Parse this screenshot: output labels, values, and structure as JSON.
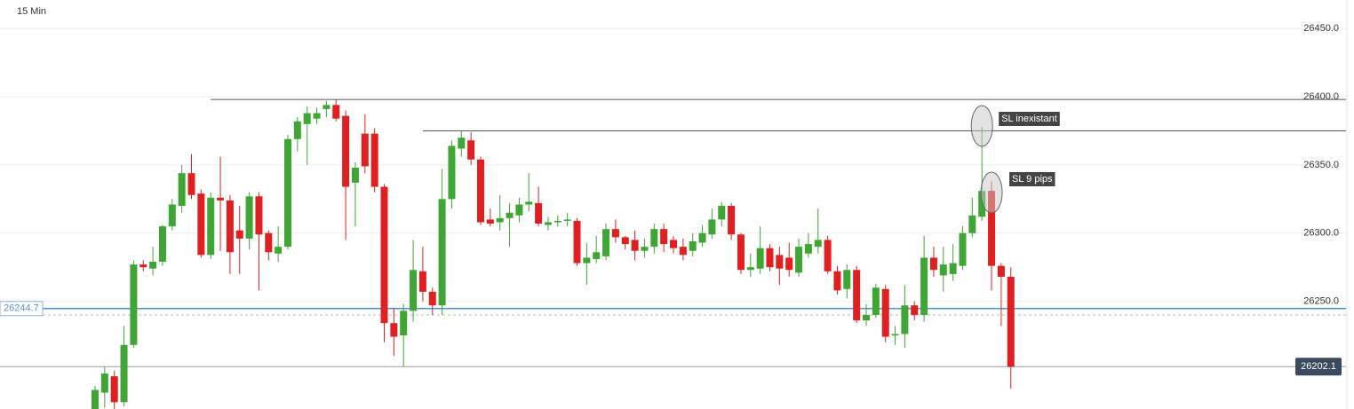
{
  "chart_data": {
    "type": "candlestick",
    "title": "15 Min",
    "open": [
      26171,
      26183,
      26195,
      26176,
      26218,
      26277,
      26274,
      26279,
      26305,
      26320,
      26344,
      26329,
      26284,
      26326,
      26324,
      26302,
      26296,
      26327,
      26300,
      26285,
      26290,
      26369,
      26380,
      26384,
      26391,
      26394,
      26386,
      26337,
      26373,
      26373,
      26334,
      26234,
      26225,
      26243,
      26272,
      26257,
      26247,
      26325,
      26362,
      26368,
      26354,
      26310,
      26308,
      26311,
      26313,
      26321,
      26322,
      26306,
      26308,
      26309,
      26309,
      26278,
      26281,
      26283,
      26303,
      26297,
      26295,
      26287,
      26290,
      26303,
      26295,
      26290,
      26287,
      26293,
      26299,
      26310,
      26320,
      26299,
      26273,
      26274,
      26289,
      26284,
      26282,
      26271,
      26285,
      26290,
      26295,
      26272,
      26259,
      26273,
      26236,
      26240,
      26259,
      26225,
      26226,
      26247,
      26240,
      26282,
      26269,
      26270,
      26276,
      26300,
      26312,
      26331,
      26276,
      26268
    ],
    "high": [
      26188,
      26202,
      26199,
      26232,
      26280,
      26280,
      26290,
      26306,
      26325,
      26350,
      26358,
      26332,
      26330,
      26356,
      26328,
      26320,
      26330,
      26330,
      26302,
      26305,
      26372,
      26385,
      26393,
      26392,
      26397,
      26398,
      26390,
      26352,
      26387,
      26377,
      26336,
      26245,
      26248,
      26295,
      26290,
      26260,
      26347,
      26368,
      26375,
      26374,
      26356,
      26318,
      26328,
      26322,
      26326,
      26344,
      26334,
      26312,
      26313,
      26315,
      26311,
      26293,
      26298,
      26307,
      26310,
      26298,
      26302,
      26296,
      26307,
      26307,
      26298,
      26296,
      26300,
      26306,
      26318,
      26323,
      26322,
      26300,
      26285,
      26305,
      26292,
      26290,
      26293,
      26296,
      26300,
      26318,
      26298,
      26276,
      26277,
      26276,
      26248,
      26263,
      26262,
      26232,
      26262,
      26250,
      26298,
      26290,
      26290,
      26292,
      26305,
      26326,
      26378,
      26338,
      26278,
      26275
    ],
    "low": [
      26171,
      26172,
      26171,
      26173,
      26216,
      26272,
      26269,
      26276,
      26302,
      26315,
      26325,
      26282,
      26281,
      26287,
      26270,
      26270,
      26288,
      26258,
      26280,
      26279,
      26288,
      26360,
      26350,
      26380,
      26385,
      26382,
      26295,
      26305,
      26344,
      26330,
      26220,
      26210,
      26202,
      26235,
      26250,
      26240,
      26240,
      26318,
      26356,
      26350,
      26306,
      26305,
      26302,
      26290,
      26308,
      26316,
      26305,
      26302,
      26305,
      26305,
      26276,
      26262,
      26278,
      26280,
      26293,
      26288,
      26280,
      26282,
      26285,
      26286,
      26285,
      26280,
      26283,
      26290,
      26296,
      26305,
      26295,
      26270,
      26268,
      26270,
      26272,
      26262,
      26268,
      26268,
      26282,
      26285,
      26270,
      26255,
      26252,
      26234,
      26232,
      26238,
      26220,
      26218,
      26216,
      26236,
      26235,
      26268,
      26257,
      26265,
      26273,
      26297,
      26309,
      26258,
      26232,
      26186
    ],
    "close": [
      26185,
      26197,
      26176,
      26218,
      26277,
      26275,
      26279,
      26305,
      26321,
      26344,
      26328,
      26284,
      26326,
      26324,
      26286,
      26296,
      26327,
      26299,
      26286,
      26290,
      26369,
      26382,
      26388,
      26388,
      26394,
      26384,
      26334,
      26348,
      26349,
      26334,
      26234,
      26224,
      26243,
      26273,
      26257,
      26247,
      26325,
      26364,
      26370,
      26354,
      26308,
      26307,
      26311,
      26315,
      26321,
      26323,
      26307,
      26308,
      26309,
      26310,
      26278,
      26282,
      26286,
      26303,
      26297,
      26292,
      26287,
      26290,
      26303,
      26292,
      26289,
      26284,
      26294,
      26300,
      26310,
      26320,
      26299,
      26273,
      26275,
      26289,
      26275,
      26274,
      26273,
      26290,
      26292,
      26295,
      26272,
      26258,
      26273,
      26236,
      26240,
      26260,
      26224,
      26226,
      26247,
      26240,
      26282,
      26273,
      26277,
      26278,
      26300,
      26313,
      26331,
      26276,
      26268,
      26202
    ],
    "up_color": "#3fa535",
    "down_color": "#e02020",
    "ylim": [
      26171,
      26471
    ],
    "yticks": [
      {
        "value": 26250,
        "label": "26250.0"
      },
      {
        "value": 26300,
        "label": "26300.0"
      },
      {
        "value": 26350,
        "label": "26350.0"
      },
      {
        "value": 26400,
        "label": "26400.0"
      },
      {
        "value": 26450,
        "label": "26450.0"
      }
    ],
    "levels": [
      {
        "value": 26398,
        "x_start": 12
      },
      {
        "value": 26375,
        "x_start": 34
      }
    ],
    "bid": {
      "value": 26244.7,
      "label": "26244.7"
    },
    "last": {
      "value": 26202.1,
      "label": "26202.1"
    },
    "dashed_level": 26240,
    "annotations": [
      {
        "text": "SL inexistant",
        "index": 92
      },
      {
        "text": "SL 9 pips",
        "index": 93
      }
    ]
  }
}
